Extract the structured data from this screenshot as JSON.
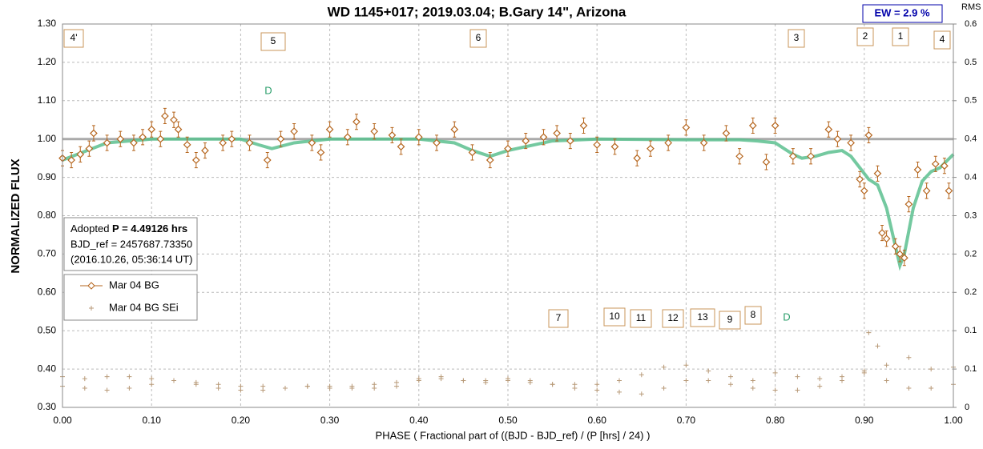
{
  "chart_data": {
    "type": "scatter",
    "title": "WD 1145+017; 2019.03.04; B.Gary 14\", Arizona",
    "x_label": "PHASE ( Fractional part of ((BJD - BJD_ref) / (P [hrs] / 24) )",
    "y_label": "NORMALIZED FLUX",
    "y2_label": "RMS i",
    "ew_box": "EW =  2.9 %",
    "info": {
      "adopted": "Adopted ",
      "period": "P = 4.49126 hrs",
      "bjd_ref": "BJD_ref = 2457687.73350",
      "date": "(2016.10.26, 05:36:14 UT)"
    },
    "annotations": [
      "4'",
      "5",
      "6",
      "3",
      "2",
      "1",
      "4",
      "7",
      "10",
      "11",
      "12",
      "13",
      "9",
      "8"
    ],
    "dip_labels": [
      "D",
      "D"
    ],
    "xlim": [
      0,
      1
    ],
    "xticks": [
      {
        "value": 0,
        "label": "0.00"
      },
      {
        "value": 0.1,
        "label": "0.10"
      },
      {
        "value": 0.2,
        "label": "0.20"
      },
      {
        "value": 0.3,
        "label": "0.30"
      },
      {
        "value": 0.4,
        "label": "0.40"
      },
      {
        "value": 0.5,
        "label": "0.50"
      },
      {
        "value": 0.6,
        "label": "0.60"
      },
      {
        "value": 0.7,
        "label": "0.70"
      },
      {
        "value": 0.8,
        "label": "0.80"
      },
      {
        "value": 0.9,
        "label": "0.90"
      },
      {
        "value": 1,
        "label": "1.00"
      }
    ],
    "ylim": [
      0.3,
      1.3
    ],
    "yticks": [
      {
        "value": 0.3,
        "label": "0.30"
      },
      {
        "value": 0.4,
        "label": "0.40"
      },
      {
        "value": 0.5,
        "label": "0.50"
      },
      {
        "value": 0.6,
        "label": "0.60"
      },
      {
        "value": 0.7,
        "label": "0.70"
      },
      {
        "value": 0.8,
        "label": "0.80"
      },
      {
        "value": 0.9,
        "label": "0.90"
      },
      {
        "value": 1.0,
        "label": "1.00"
      },
      {
        "value": 1.1,
        "label": "1.10"
      },
      {
        "value": 1.2,
        "label": "1.20"
      },
      {
        "value": 1.3,
        "label": "1.30"
      }
    ],
    "y2lim": [
      0,
      0.6
    ],
    "y2ticks": [
      0,
      {
        "value": 0.06,
        "label": "0.1"
      },
      {
        "value": 0.12,
        "label": "0.1"
      },
      {
        "value": 0.18,
        "label": "0.2"
      },
      {
        "value": 0.24,
        "label": "0.2"
      },
      {
        "value": 0.3,
        "label": "0.3"
      },
      {
        "value": 0.36,
        "label": "0.4"
      },
      {
        "value": 0.42,
        "label": "0.4"
      },
      {
        "value": 0.48,
        "label": "0.5"
      },
      {
        "value": 0.54,
        "label": "0.5"
      },
      0.6
    ],
    "grid": true,
    "reference_line": 1,
    "series": [
      {
        "name": "Mar 04 BG",
        "color": "#b5651d",
        "error": 0.02,
        "x": [
          0,
          0.01,
          0.02,
          0.03,
          0.035,
          0.05,
          0.065,
          0.08,
          0.09,
          0.1,
          0.11,
          0.115,
          0.125,
          0.13,
          0.14,
          0.15,
          0.16,
          0.18,
          0.19,
          0.21,
          0.23,
          0.245,
          0.26,
          0.28,
          0.29,
          0.3,
          0.32,
          0.33,
          0.35,
          0.37,
          0.38,
          0.4,
          0.42,
          0.44,
          0.46,
          0.48,
          0.5,
          0.52,
          0.54,
          0.555,
          0.57,
          0.585,
          0.6,
          0.62,
          0.645,
          0.66,
          0.68,
          0.7,
          0.72,
          0.745,
          0.76,
          0.775,
          0.79,
          0.8,
          0.82,
          0.84,
          0.86,
          0.87,
          0.885,
          0.895,
          0.9,
          0.905,
          0.915,
          0.92,
          0.925,
          0.935,
          0.94,
          0.945,
          0.95,
          0.96,
          0.97,
          0.98,
          0.99,
          0.995
        ],
        "values": [
          0.95,
          0.945,
          0.96,
          0.975,
          1.015,
          0.99,
          1.0,
          0.99,
          1.005,
          1.025,
          1.0,
          1.06,
          1.05,
          1.025,
          0.985,
          0.945,
          0.97,
          0.99,
          1.0,
          0.99,
          0.945,
          1.0,
          1.02,
          0.99,
          0.965,
          1.025,
          1.005,
          1.045,
          1.02,
          1.01,
          0.98,
          1.005,
          0.99,
          1.025,
          0.965,
          0.945,
          0.975,
          0.995,
          1.005,
          1.015,
          0.995,
          1.035,
          0.985,
          0.98,
          0.95,
          0.975,
          0.99,
          1.03,
          0.99,
          1.015,
          0.955,
          1.035,
          0.94,
          1.035,
          0.955,
          0.955,
          1.025,
          1.0,
          0.99,
          0.895,
          0.865,
          1.01,
          0.91,
          0.755,
          0.74,
          0.72,
          0.7,
          0.69,
          0.83,
          0.92,
          0.865,
          0.935,
          0.93,
          0.865
        ]
      },
      {
        "name": "Mar 04 BG SEi",
        "color": "#b89a78",
        "x": [
          0,
          0.025,
          0.05,
          0.075,
          0.1,
          0.125,
          0.15,
          0.175,
          0.2,
          0.225,
          0.25,
          0.275,
          0.3,
          0.325,
          0.35,
          0.375,
          0.4,
          0.425,
          0.45,
          0.475,
          0.5,
          0.525,
          0.55,
          0.575,
          0.6,
          0.625,
          0.65,
          0.675,
          0.7,
          0.725,
          0.75,
          0.775,
          0.8,
          0.825,
          0.85,
          0.875,
          0.9,
          0.925,
          0.95,
          0.975,
          1,
          0,
          0.025,
          0.05,
          0.075,
          0.1,
          0.125,
          0.15,
          0.175,
          0.2,
          0.225,
          0.25,
          0.275,
          0.3,
          0.325,
          0.35,
          0.375,
          0.4,
          0.425,
          0.45,
          0.475,
          0.5,
          0.525,
          0.55,
          0.575,
          0.6,
          0.625,
          0.65,
          0.675,
          0.7,
          0.725,
          0.75,
          0.775,
          0.8,
          0.825,
          0.85,
          0.875,
          0.9,
          0.925,
          0.95,
          0.975,
          1,
          0.905,
          0.915
        ],
        "values": [
          0.38,
          0.375,
          0.38,
          0.38,
          0.375,
          0.37,
          0.36,
          0.36,
          0.355,
          0.355,
          0.35,
          0.355,
          0.35,
          0.355,
          0.36,
          0.365,
          0.375,
          0.38,
          0.37,
          0.37,
          0.375,
          0.37,
          0.36,
          0.35,
          0.36,
          0.37,
          0.385,
          0.405,
          0.41,
          0.395,
          0.38,
          0.37,
          0.39,
          0.38,
          0.375,
          0.38,
          0.395,
          0.41,
          0.43,
          0.4,
          0.405,
          0.355,
          0.35,
          0.345,
          0.35,
          0.36,
          0.37,
          0.365,
          0.35,
          0.345,
          0.345,
          0.35,
          0.355,
          0.355,
          0.35,
          0.35,
          0.355,
          0.37,
          0.375,
          0.37,
          0.365,
          0.37,
          0.365,
          0.36,
          0.36,
          0.345,
          0.34,
          0.335,
          0.35,
          0.37,
          0.37,
          0.36,
          0.35,
          0.345,
          0.345,
          0.355,
          0.37,
          0.39,
          0.37,
          0.35,
          0.35,
          0.36,
          0.495,
          0.46
        ]
      },
      {
        "name": "fit",
        "color": "#5cc08f",
        "x": [
          0,
          0.05,
          0.1,
          0.2,
          0.22,
          0.235,
          0.26,
          0.3,
          0.4,
          0.44,
          0.46,
          0.48,
          0.5,
          0.55,
          0.6,
          0.7,
          0.76,
          0.78,
          0.8,
          0.81,
          0.82,
          0.83,
          0.845,
          0.86,
          0.875,
          0.885,
          0.895,
          0.905,
          0.915,
          0.925,
          0.935,
          0.94,
          0.945,
          0.955,
          0.965,
          0.975,
          0.985,
          1
        ],
        "values": [
          0.945,
          0.99,
          1.0,
          1.0,
          0.985,
          0.975,
          0.99,
          1.0,
          1.0,
          0.99,
          0.97,
          0.955,
          0.97,
          0.995,
          1.0,
          0.998,
          0.998,
          0.995,
          0.99,
          0.975,
          0.96,
          0.95,
          0.955,
          0.965,
          0.97,
          0.955,
          0.925,
          0.895,
          0.88,
          0.82,
          0.72,
          0.67,
          0.7,
          0.82,
          0.89,
          0.915,
          0.925,
          0.96
        ]
      }
    ]
  }
}
